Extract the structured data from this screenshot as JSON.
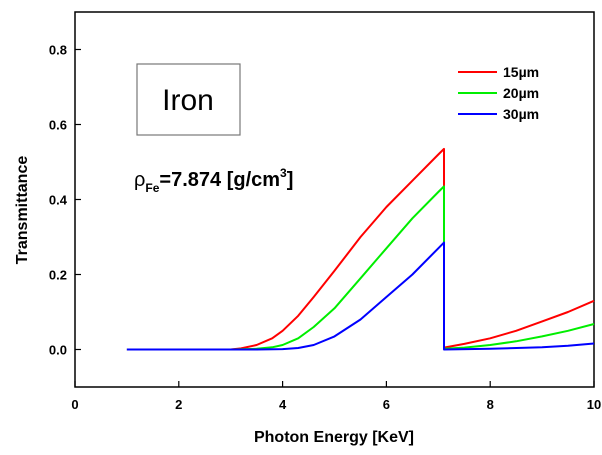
{
  "chart_data": {
    "type": "line",
    "title": "",
    "xlabel": "Photon Energy [KeV]",
    "ylabel": "Transmittance",
    "xlim": [
      0,
      10
    ],
    "ylim": [
      -0.1,
      0.9
    ],
    "xticks": [
      0,
      2,
      4,
      6,
      8,
      10
    ],
    "xtick_labels": [
      "0",
      "2",
      "4",
      "6",
      "8",
      "10"
    ],
    "yticks": [
      0.0,
      0.2,
      0.4,
      0.6,
      0.8
    ],
    "ytick_labels": [
      "0.0",
      "0.2",
      "0.4",
      "0.6",
      "0.8"
    ],
    "grid": false,
    "legend_position": "top-right",
    "annotations": {
      "box_label": "Iron",
      "density_prefix": "ρ",
      "density_subscript": "Fe",
      "density_value": "=7.874 [g/cm",
      "density_superscript": "3",
      "density_suffix": "]"
    },
    "series": [
      {
        "name": "15µm",
        "color": "#ff0000",
        "x": [
          1.0,
          2.5,
          3.0,
          3.2,
          3.5,
          3.8,
          4.0,
          4.3,
          4.6,
          5.0,
          5.5,
          6.0,
          6.5,
          7.0,
          7.11,
          7.11,
          7.5,
          8.0,
          8.5,
          9.0,
          9.5,
          10.0
        ],
        "y": [
          0.0,
          0.0,
          0.0,
          0.003,
          0.012,
          0.03,
          0.05,
          0.09,
          0.14,
          0.21,
          0.3,
          0.38,
          0.45,
          0.52,
          0.535,
          0.005,
          0.015,
          0.03,
          0.05,
          0.075,
          0.1,
          0.13
        ]
      },
      {
        "name": "20µm",
        "color": "#00ee00",
        "x": [
          1.0,
          3.0,
          3.5,
          3.8,
          4.0,
          4.3,
          4.6,
          5.0,
          5.5,
          6.0,
          6.5,
          7.0,
          7.11,
          7.11,
          7.5,
          8.0,
          8.5,
          9.0,
          9.5,
          10.0
        ],
        "y": [
          0.0,
          0.0,
          0.002,
          0.006,
          0.012,
          0.03,
          0.06,
          0.11,
          0.19,
          0.27,
          0.35,
          0.42,
          0.435,
          0.002,
          0.005,
          0.012,
          0.022,
          0.035,
          0.05,
          0.068
        ]
      },
      {
        "name": "30µm",
        "color": "#0000ff",
        "x": [
          1.0,
          3.5,
          4.0,
          4.3,
          4.6,
          5.0,
          5.5,
          6.0,
          6.5,
          7.0,
          7.11,
          7.11,
          8.0,
          9.0,
          9.5,
          10.0
        ],
        "y": [
          0.0,
          0.0,
          0.001,
          0.004,
          0.012,
          0.035,
          0.08,
          0.14,
          0.2,
          0.27,
          0.285,
          0.0,
          0.002,
          0.006,
          0.01,
          0.016
        ]
      }
    ]
  }
}
